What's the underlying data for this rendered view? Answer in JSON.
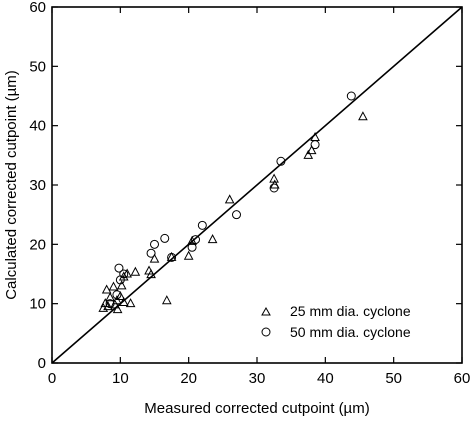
{
  "chart_data": {
    "type": "scatter",
    "title": "",
    "xlabel": "Measured corrected cutpoint (µm)",
    "ylabel": "Calculated corrected cutpoint (µm)",
    "xlim": [
      0,
      60
    ],
    "ylim": [
      0,
      60
    ],
    "xticks": [
      0,
      10,
      20,
      30,
      40,
      50,
      60
    ],
    "yticks": [
      0,
      10,
      20,
      30,
      40,
      50,
      60
    ],
    "x_tick_labels": [
      "0",
      "10",
      "20",
      "30",
      "40",
      "50",
      "60"
    ],
    "y_tick_labels": [
      "0",
      "10",
      "20",
      "30",
      "40",
      "50",
      "60"
    ],
    "grid": false,
    "legend_position": "bottom-right",
    "reference_line": {
      "type": "y=x"
    },
    "series": [
      {
        "name": "25 mm dia. cyclone",
        "marker": "triangle",
        "points": [
          [
            7.5,
            9.2
          ],
          [
            7.8,
            10.0
          ],
          [
            8.0,
            12.3
          ],
          [
            8.2,
            9.5
          ],
          [
            8.5,
            11.0
          ],
          [
            9.0,
            12.8
          ],
          [
            9.2,
            9.8
          ],
          [
            9.5,
            10.5
          ],
          [
            9.6,
            9.0
          ],
          [
            10.0,
            11.2
          ],
          [
            10.2,
            13.0
          ],
          [
            10.5,
            10.2
          ],
          [
            10.5,
            14.5
          ],
          [
            11.0,
            15.0
          ],
          [
            11.5,
            10.0
          ],
          [
            12.2,
            15.3
          ],
          [
            14.2,
            15.5
          ],
          [
            14.5,
            14.9
          ],
          [
            15.0,
            17.5
          ],
          [
            16.8,
            10.5
          ],
          [
            17.5,
            17.8
          ],
          [
            20.0,
            18.0
          ],
          [
            20.5,
            20.5
          ],
          [
            23.5,
            20.8
          ],
          [
            26.0,
            27.5
          ],
          [
            32.5,
            31.0
          ],
          [
            32.6,
            30.0
          ],
          [
            37.5,
            35.0
          ],
          [
            38.0,
            35.8
          ],
          [
            38.5,
            38.0
          ],
          [
            45.5,
            41.5
          ]
        ]
      },
      {
        "name": "50 mm dia. cyclone",
        "marker": "circle",
        "points": [
          [
            8.5,
            10.0
          ],
          [
            9.5,
            11.5
          ],
          [
            9.8,
            16.0
          ],
          [
            10.0,
            14.0
          ],
          [
            10.5,
            15.0
          ],
          [
            14.5,
            18.5
          ],
          [
            15.0,
            20.0
          ],
          [
            16.5,
            21.0
          ],
          [
            17.5,
            17.8
          ],
          [
            20.5,
            19.5
          ],
          [
            21.0,
            20.8
          ],
          [
            22.0,
            23.2
          ],
          [
            27.0,
            25.0
          ],
          [
            32.5,
            29.5
          ],
          [
            33.5,
            34.0
          ],
          [
            38.5,
            36.8
          ],
          [
            43.8,
            45.0
          ]
        ]
      }
    ]
  }
}
